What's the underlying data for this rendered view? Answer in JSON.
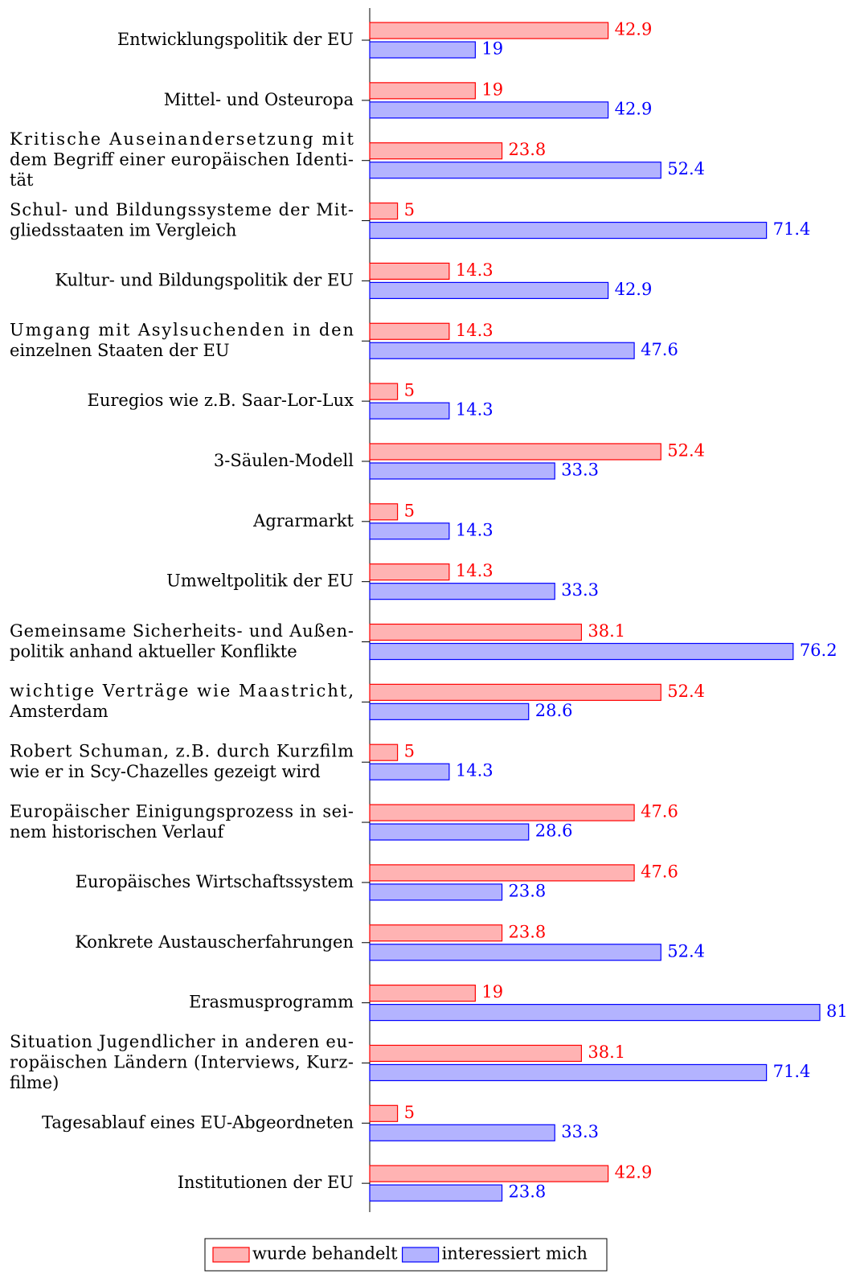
{
  "chart_data": {
    "type": "hbar",
    "categories": [
      "Entwicklungspolitik der EU",
      "Mittel- und Osteuropa",
      "Kritische Auseinandersetzung mit\ndem Begriff einer europäischen Identi-\ntät",
      "Schul- und Bildungssysteme der Mit-\ngliedsstaaten im Vergleich",
      "Kultur- und Bildungspolitik der EU",
      "Umgang mit Asylsuchenden in den\neinzelnen Staaten der EU",
      "Euregios wie z.B. Saar-Lor-Lux",
      "3-Säulen-Modell",
      "Agrarmarkt",
      "Umweltpolitik der EU",
      "Gemeinsame Sicherheits- und Außen-\npolitik anhand aktueller Konflikte",
      "wichtige Verträge wie Maastricht,\nAmsterdam",
      "Robert Schuman, z.B. durch Kurzfilm\nwie er in Scy-Chazelles gezeigt wird",
      "Europäischer Einigungsprozess in sei-\nnem historischen Verlauf",
      "Europäisches Wirtschaftssystem",
      "Konkrete Austauscherfahrungen",
      "Erasmusprogramm",
      "Situation Jugendlicher in anderen eu-\nropäischen Ländern (Interviews, Kurz-\nfilme)",
      "Tagesablauf eines EU-Abgeordneten",
      "Institutionen der EU"
    ],
    "series": [
      {
        "name": "wurde behandelt",
        "color": "#ff0000",
        "fill": "#ffb3b3",
        "values": [
          42.9,
          19,
          23.8,
          5,
          14.3,
          14.3,
          5,
          52.4,
          5,
          14.3,
          38.1,
          52.4,
          5,
          47.6,
          47.6,
          23.8,
          19,
          38.1,
          5,
          42.9
        ]
      },
      {
        "name": "interessiert mich",
        "color": "#0000ff",
        "fill": "#b3b3ff",
        "values": [
          19,
          42.9,
          52.4,
          71.4,
          42.9,
          47.6,
          14.3,
          33.3,
          14.3,
          33.3,
          76.2,
          28.6,
          14.3,
          28.6,
          23.8,
          52.4,
          81,
          71.4,
          33.3,
          23.8
        ]
      }
    ]
  }
}
